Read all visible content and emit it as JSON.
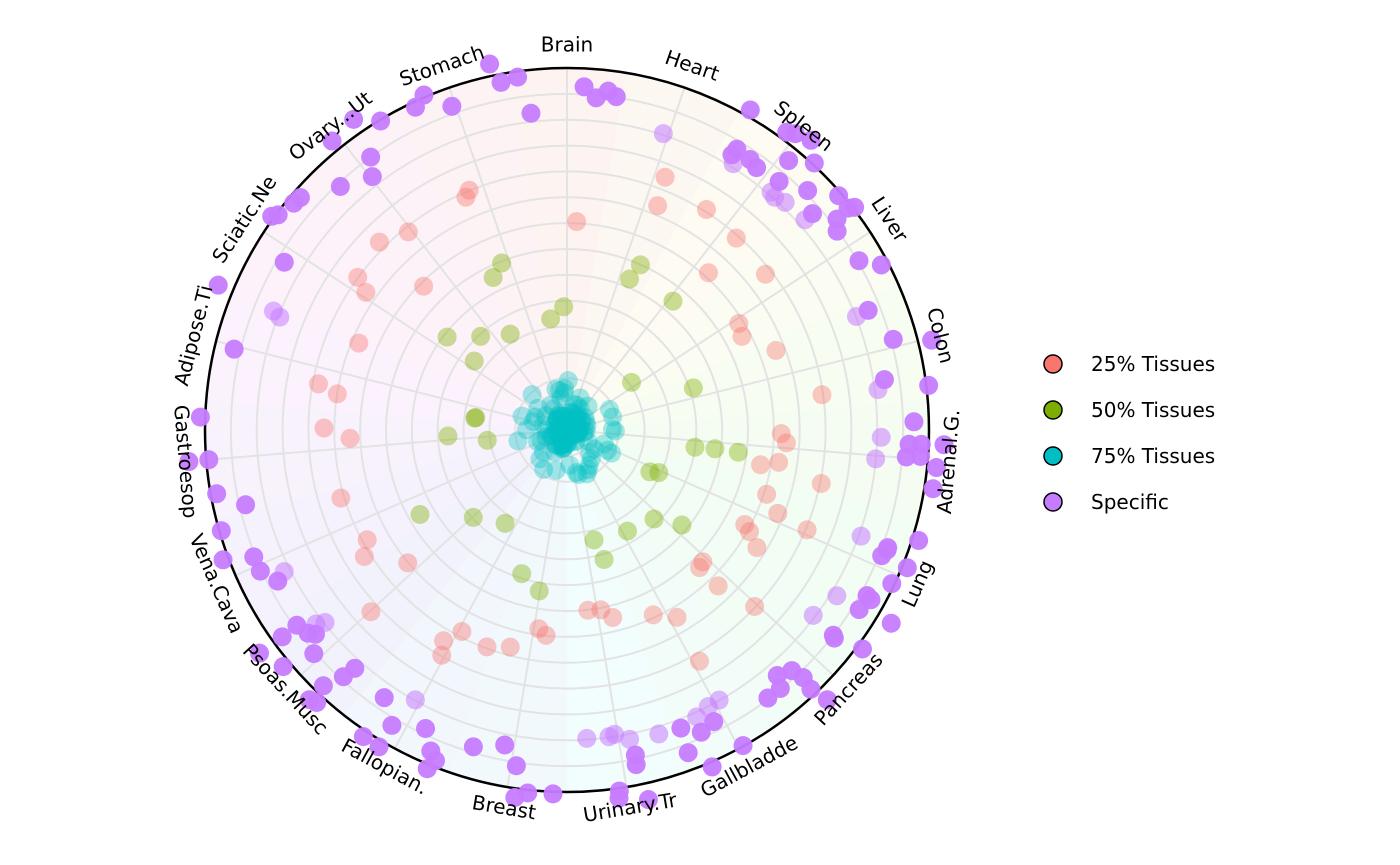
{
  "chart_data": {
    "type": "scatter",
    "subtype": "polar-jitter",
    "title": "",
    "categories": [
      "Brain",
      "Heart",
      "Spleen",
      "Liver",
      "Colon",
      "Adrenal.G.",
      "Lung",
      "Pancreas",
      "Gallbladde",
      "Urinary.Tr",
      "Breast",
      "Fallopian.",
      "Psoas.Musc",
      "Vena.Cava",
      "Gastroesop",
      "Adipose.Ti",
      "Sciatic.Ne",
      "Ovary...Ut",
      "Stomach"
    ],
    "radial_range": [
      0,
      1
    ],
    "grid": true,
    "legend_position": "right",
    "series": [
      {
        "name": "25% Tissues",
        "color": "#F8766D",
        "radius": [
          0.5,
          0.75
        ],
        "counts": [
          1,
          2,
          3,
          3,
          2,
          5,
          6,
          4,
          3,
          3,
          3,
          4,
          2,
          3,
          2,
          3,
          2,
          3,
          2
        ]
      },
      {
        "name": "50% Tissues",
        "color": "#7CAE00",
        "radius": [
          0.22,
          0.5
        ],
        "counts": [
          2,
          2,
          1,
          1,
          1,
          3,
          2,
          2,
          1,
          2,
          2,
          1,
          1,
          1,
          2,
          2,
          2,
          2,
          2
        ]
      },
      {
        "name": "75% Tissues",
        "color": "#00BFC4",
        "radius": [
          0.0,
          0.14
        ],
        "counts": [
          4,
          4,
          4,
          4,
          4,
          4,
          4,
          4,
          4,
          4,
          4,
          4,
          4,
          4,
          4,
          4,
          4,
          4,
          4
        ]
      },
      {
        "name": "Specific",
        "color": "#C77CFF",
        "radius": [
          0.85,
          1.05
        ],
        "counts": [
          6,
          1,
          16,
          9,
          7,
          10,
          12,
          10,
          10,
          10,
          6,
          9,
          14,
          6,
          5,
          4,
          5,
          6,
          5
        ]
      }
    ],
    "legend": [
      "25% Tissues",
      "50% Tissues",
      "75% Tissues",
      "Specific"
    ]
  }
}
